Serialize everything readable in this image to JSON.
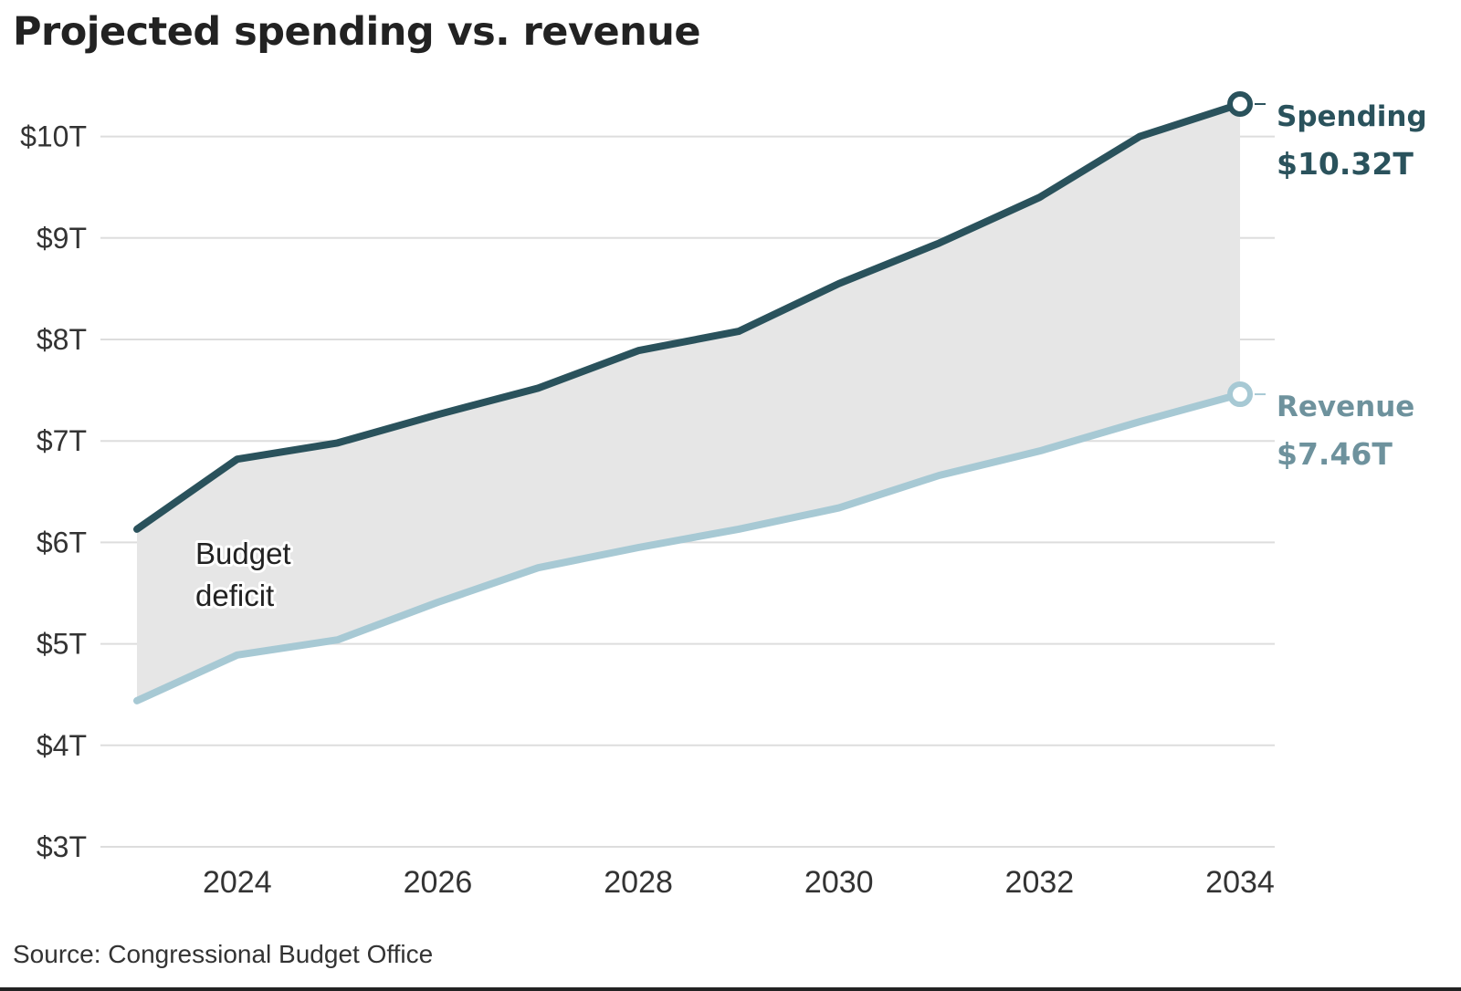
{
  "chart_data": {
    "type": "line",
    "title": "Projected spending vs. revenue",
    "source": "Source: Congressional Budget Office",
    "xlim": [
      2023,
      2034
    ],
    "ylim": [
      3,
      10.3
    ],
    "x_ticks": [
      2024,
      2026,
      2028,
      2030,
      2032,
      2034
    ],
    "x_tick_labels": [
      "2024",
      "2026",
      "2028",
      "2030",
      "2032",
      "2034"
    ],
    "y_ticks": [
      3,
      4,
      5,
      6,
      7,
      8,
      9,
      10
    ],
    "y_tick_labels": [
      "$3T",
      "$4T",
      "$5T",
      "$6T",
      "$7T",
      "$8T",
      "$9T",
      "$10T"
    ],
    "x": [
      2023,
      2024,
      2025,
      2026,
      2027,
      2028,
      2029,
      2030,
      2031,
      2032,
      2033,
      2034
    ],
    "series": [
      {
        "name": "Spending",
        "values": [
          6.13,
          6.82,
          6.98,
          7.26,
          7.52,
          7.89,
          8.08,
          8.55,
          8.95,
          9.4,
          10.0,
          10.32
        ],
        "color": "#2a525c",
        "end_label": "Spending",
        "end_value": "$10.32T"
      },
      {
        "name": "Revenue",
        "values": [
          4.44,
          4.89,
          5.04,
          5.41,
          5.75,
          5.95,
          6.13,
          6.34,
          6.66,
          6.9,
          7.19,
          7.46
        ],
        "color": "#a7c9d4",
        "label_color": "#6e929d",
        "end_label": "Revenue",
        "end_value": "$7.46T"
      }
    ],
    "area": {
      "between": [
        "Spending",
        "Revenue"
      ],
      "label_lines": [
        "Budget",
        "deficit"
      ],
      "color": "#e6e6e6"
    },
    "grid": true,
    "legend": "direct end labels"
  }
}
